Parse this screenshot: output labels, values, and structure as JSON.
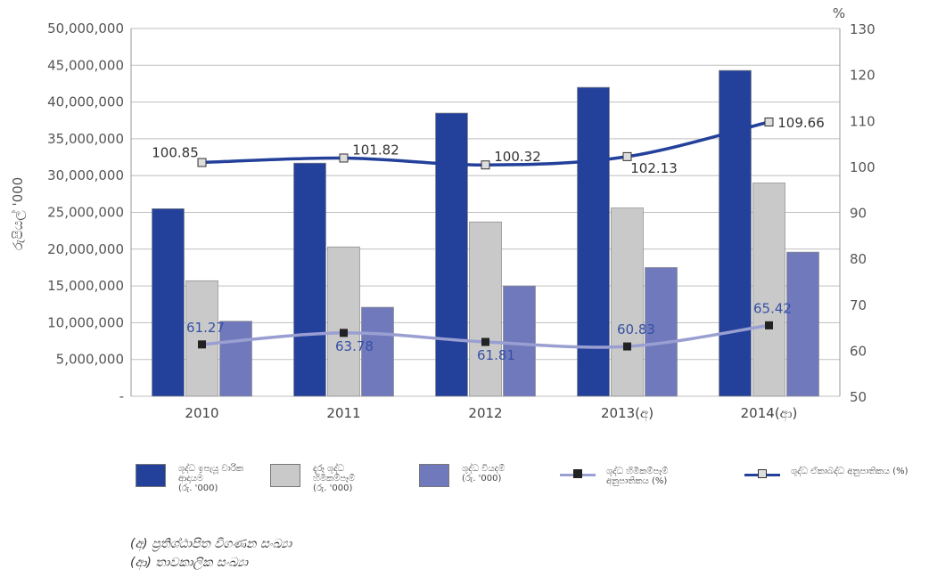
{
  "chart_data": {
    "type": "bar+line",
    "categories": [
      "2010",
      "2011",
      "2012",
      "2013(අ)",
      "2014(ආ)"
    ],
    "ylabel_left": "රුපියල් '000",
    "ylabel_right": "%",
    "ylim_left": [
      0,
      50000000
    ],
    "ylim_right": [
      50,
      130
    ],
    "yticks_left": [
      "-",
      "5,000,000",
      "10,000,000",
      "15,000,000",
      "20,000,000",
      "25,000,000",
      "30,000,000",
      "35,000,000",
      "40,000,000",
      "45,000,000",
      "50,000,000"
    ],
    "yticks_right": [
      "50",
      "60",
      "70",
      "80",
      "90",
      "100",
      "110",
      "120",
      "130"
    ],
    "bar_series": [
      {
        "name": "ශුද්ධ ඉපැයූ වාරික ආදායම (රු. '000)",
        "color": "#23409a",
        "values": [
          25500000,
          31700000,
          38500000,
          42000000,
          44300000
        ]
      },
      {
        "name": "දැරූ ශුද්ධ හිමිකම්පෑම් (රු. '000)",
        "color": "#c9c9c9",
        "values": [
          15700000,
          20300000,
          23700000,
          25600000,
          29000000
        ]
      },
      {
        "name": "ශුද්ධ වියදම් (රු. '000)",
        "color": "#7079bc",
        "values": [
          10200000,
          12100000,
          15000000,
          17500000,
          19600000
        ]
      }
    ],
    "line_series": [
      {
        "name": "ශුද්ධ හිමිකම්පෑම් අනුපාතිකය (%)",
        "color": "#9a9fd2",
        "marker": "#222222",
        "values": [
          61.27,
          63.78,
          61.81,
          60.83,
          65.42
        ],
        "labels": [
          "61.27",
          "63.78",
          "61.81",
          "60.83",
          "65.42"
        ]
      },
      {
        "name": "ශුද්ධ ඒකාබද්ධ අනුපාතිකය (%)",
        "color": "#23409a",
        "marker": "#dddddd",
        "values": [
          100.85,
          101.82,
          100.32,
          102.13,
          109.66
        ],
        "labels": [
          "100.85",
          "101.82",
          "100.32",
          "102.13",
          "109.66"
        ]
      }
    ],
    "grid": true,
    "legend_position": "bottom"
  },
  "legend": {
    "net_earned_premium": "ශුද්ධ ඉපැයූ වාරික\nආදායම\n(රු. '000)",
    "net_claims_incurred": "දැරූ ශුද්ධ\nහිමිකම්පෑම්\n(රු. '000)",
    "net_expenses": "ශුද්ධ වියදම්\n(රු. '000)",
    "net_claims_ratio": "ශුද්ධ හිමිකම්පෑම්\nඅනුපාතිකය  (%)",
    "net_combined_ratio": "ශුද්ධ ඒකාබද්ධ අනුපාතිකය (%)"
  },
  "notes": {
    "a": "(අ)  ප්‍රතිශ්ඨාපිත විගණන සංඛ්‍යා",
    "b": "(ආ) තාවකාලික සංඛ්‍යා"
  }
}
